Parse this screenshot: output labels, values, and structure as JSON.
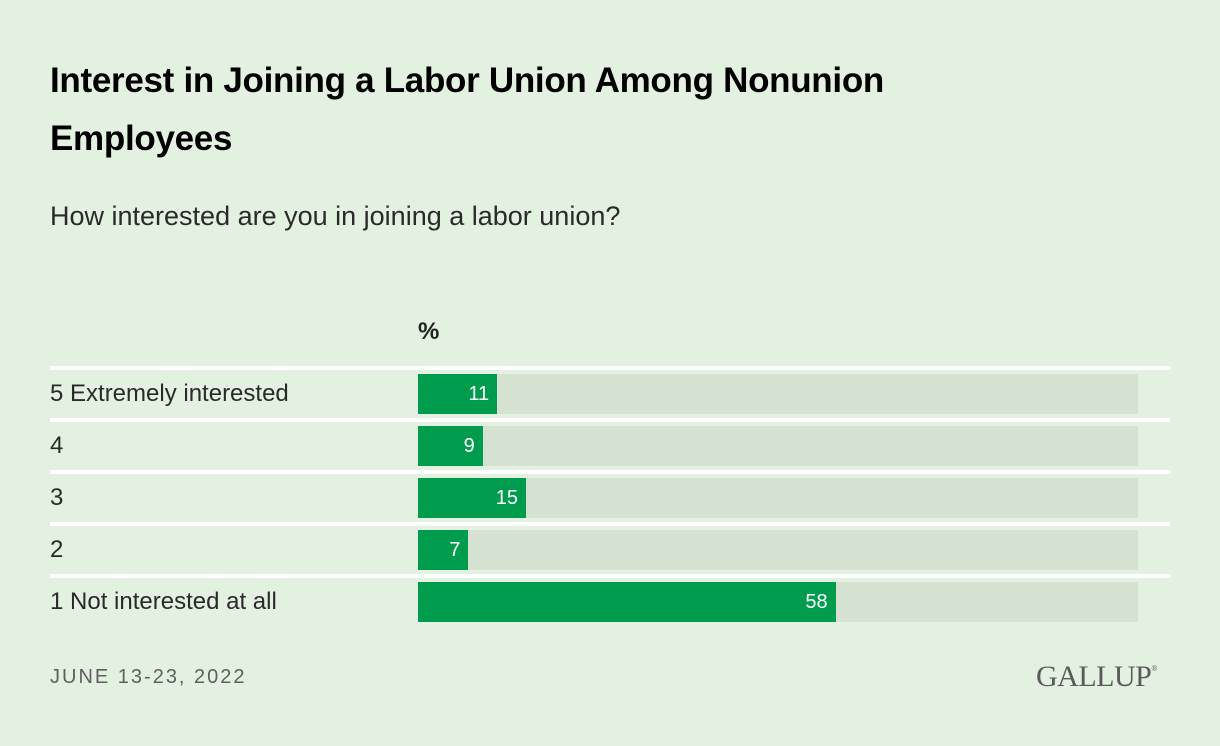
{
  "header": {
    "title": "Interest in Joining a Labor Union Among Nonunion Employees",
    "subtitle": "How interested are you in joining a labor union?"
  },
  "unit_label": "%",
  "footer": {
    "date": "JUNE 13-23, 2022",
    "logo": "GALLUP",
    "logo_mark": "®"
  },
  "colors": {
    "background": "#e3f1e1",
    "bar": "#009c4e",
    "track": "#d5e2d2",
    "separator": "#ffffff"
  },
  "chart_data": {
    "type": "bar",
    "orientation": "horizontal",
    "title": "Interest in Joining a Labor Union Among Nonunion Employees",
    "subtitle": "How interested are you in joining a labor union?",
    "xlabel": "%",
    "ylabel": "",
    "categories": [
      "5 Extremely interested",
      "4",
      "3",
      "2",
      "1 Not interested at all"
    ],
    "values": [
      11,
      9,
      15,
      7,
      58
    ],
    "xlim": [
      0,
      100
    ],
    "grid": false,
    "legend": "none",
    "data_labels": true,
    "note": "JUNE 13-23, 2022",
    "source": "GALLUP"
  }
}
